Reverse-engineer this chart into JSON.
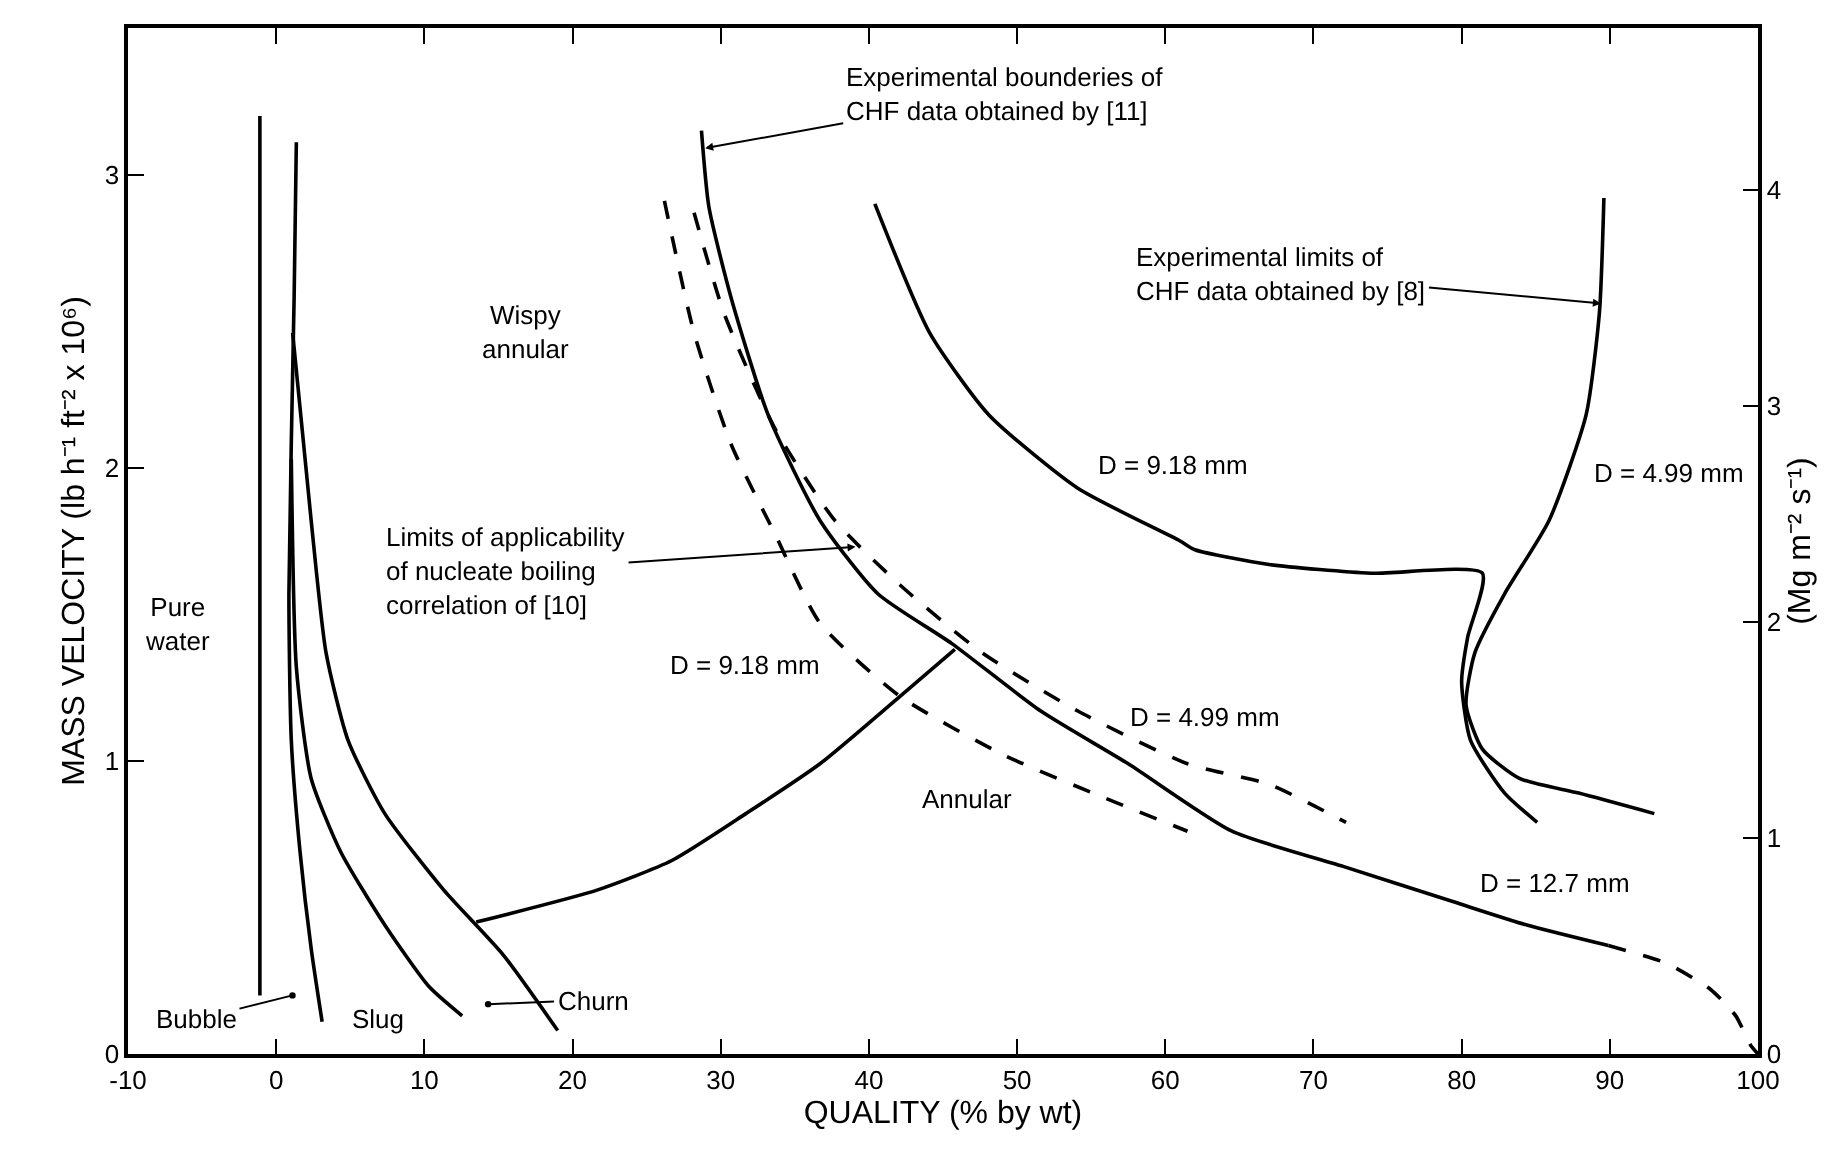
{
  "chart_data": {
    "type": "line",
    "xlabel": "QUALITY (% by wt)",
    "ylabel": "MASS VELOCITY (lb h⁻¹ ft⁻² x 10⁶)",
    "y2label": "(Mg m⁻² s⁻¹)",
    "xlim": [
      -10,
      100
    ],
    "xticks": [
      -10,
      0,
      10,
      20,
      30,
      40,
      50,
      60,
      70,
      80,
      90,
      100
    ],
    "ylim": [
      0,
      3.5
    ],
    "yticks": [
      0,
      1,
      2,
      3
    ],
    "y2lim": [
      0,
      4.75
    ],
    "y2ticks": [
      0,
      1,
      2,
      3,
      4
    ],
    "marker": "none",
    "line_style": "solid",
    "series": [
      {
        "color": "#000000",
        "x": [
          -1.1,
          -1.1
        ],
        "values": [
          0.2,
          3.2
        ]
      },
      {
        "color": "#000000",
        "x": [
          1.36,
          1.21,
          0.86,
          1.02,
          1.61,
          2.36,
          3.1
        ],
        "values": [
          3.11,
          2.58,
          1.57,
          1.07,
          0.69,
          0.36,
          0.11
        ]
      },
      {
        "color": "#000000",
        "x": [
          1.02,
          1.36,
          2.36,
          4.35,
          7.33,
          10.31,
          12.55
        ],
        "values": [
          2.03,
          1.32,
          0.94,
          0.69,
          0.44,
          0.23,
          0.13
        ]
      },
      {
        "color": "#000000",
        "x": [
          1.11,
          2.36,
          3.36,
          4.85,
          7.33,
          11.3,
          15.29,
          19.0
        ],
        "values": [
          2.46,
          1.82,
          1.37,
          1.07,
          0.82,
          0.56,
          0.34,
          0.08
        ]
      },
      {
        "color": "#000000",
        "x": [
          13.5,
          21.7,
          26.7,
          31.7,
          36.7,
          42.1,
          45.8
        ],
        "values": [
          0.45,
          0.56,
          0.66,
          0.82,
          0.99,
          1.22,
          1.38
        ]
      },
      {
        "color": "#000000",
        "x": [
          28.7,
          29.2,
          30.7,
          33.2,
          36.7,
          40.6,
          45.6,
          51.6,
          57.5,
          64.5,
          72.0,
          79.4,
          84.4,
          89.9
        ],
        "values": [
          3.15,
          2.89,
          2.58,
          2.18,
          1.82,
          1.57,
          1.4,
          1.17,
          0.99,
          0.76,
          0.64,
          0.52,
          0.44,
          0.37
        ]
      },
      {
        "color": "#000000",
        "line_style": "dashed",
        "x": [
          89.9,
          93.8,
          96.8,
          98.5,
          99.5,
          100
        ],
        "values": [
          0.37,
          0.31,
          0.22,
          0.13,
          0.03,
          0
        ]
      },
      {
        "color": "#000000",
        "line_style": "dashed",
        "x": [
          28.2,
          30.2,
          33.7,
          37.7,
          42.1,
          47.6,
          54.1,
          61.5,
          67.0,
          72.2
        ],
        "values": [
          2.87,
          2.53,
          2.13,
          1.82,
          1.6,
          1.37,
          1.17,
          0.99,
          0.92,
          0.79
        ]
      },
      {
        "color": "#000000",
        "line_style": "dashed",
        "x": [
          26.2,
          28.2,
          30.7,
          33.7,
          36.7,
          42.1,
          49.1,
          55.6,
          61.5
        ],
        "values": [
          2.91,
          2.46,
          2.08,
          1.77,
          1.47,
          1.22,
          1.02,
          0.88,
          0.76
        ]
      },
      {
        "color": "#000000",
        "x": [
          40.4,
          44.1,
          48.1,
          54.1,
          61.0,
          62.0,
          67.0,
          73.9,
          81.4,
          80.4,
          80.0,
          80.6,
          82.9,
          85.1
        ],
        "values": [
          2.9,
          2.46,
          2.18,
          1.93,
          1.75,
          1.72,
          1.67,
          1.64,
          1.64,
          1.42,
          1.27,
          1.07,
          0.89,
          0.79
        ]
      },
      {
        "color": "#000000",
        "x": [
          89.6,
          89.3,
          88.4,
          85.9,
          82.9,
          80.9,
          80.3,
          81.4,
          83.9,
          87.9,
          93.0
        ],
        "values": [
          2.92,
          2.53,
          2.18,
          1.82,
          1.57,
          1.37,
          1.19,
          1.04,
          0.94,
          0.89,
          0.82
        ]
      }
    ],
    "annotations": [
      "Pure\nwater",
      {
        "text": "Bubble",
        "x": 1.1,
        "y": 0.2
      },
      "Slug",
      {
        "text": "Churn",
        "x": 14.3,
        "y": 0.17
      },
      "Wispy\nannular",
      {
        "text": "Limits of applicability\nof nucleate boiling\ncorrelation of [10]",
        "x": 39.1,
        "y": 1.73
      },
      "D = 9.18 mm",
      "Annular",
      {
        "text": "Experimental bounderies of\nCHF data obtained by [11]",
        "x": 28.95,
        "y": 3.09
      },
      {
        "text": "Experimental limits of\nCHF data obtained by [8]",
        "x": 89.4,
        "y": 2.56
      },
      "D = 9.18 mm",
      "D = 4.99 mm",
      "D = 4.99 mm",
      "D = 12.7 mm"
    ]
  }
}
